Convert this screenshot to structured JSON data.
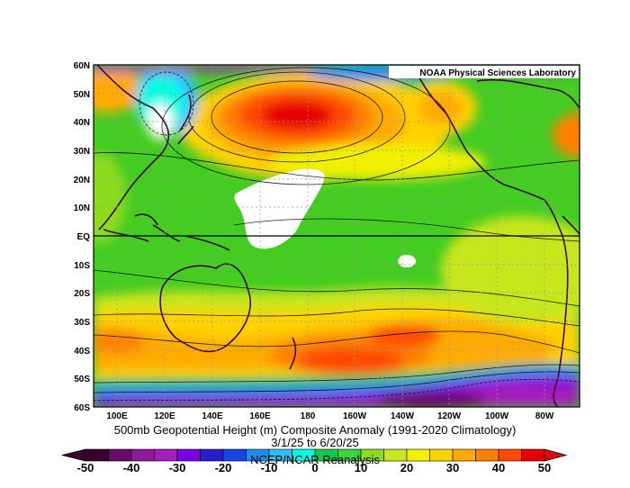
{
  "map": {
    "credit": "NOAA Physical Sciences Laboratory",
    "lat_labels": [
      "60N",
      "50N",
      "40N",
      "30N",
      "20N",
      "10N",
      "EQ",
      "10S",
      "20S",
      "30S",
      "40S",
      "50S",
      "60S"
    ],
    "lon_labels": [
      "100E",
      "120E",
      "140E",
      "160E",
      "180",
      "160W",
      "140W",
      "120W",
      "100W",
      "80W"
    ],
    "colors": {
      "land_outline": "#3a0a3a",
      "grid": "#999999",
      "zero_band": "#44cc22"
    }
  },
  "caption": {
    "line1": "500mb Geopotential Height (m) Composite Anomaly (1991-2020 Climatology)",
    "line2": "3/1/25  to 6/20/25",
    "line3": "NCEP/NCAR Reanalysis"
  },
  "colorbar": {
    "ticks": [
      "-50",
      "-40",
      "-30",
      "-20",
      "-10",
      "0",
      "10",
      "20",
      "30",
      "40",
      "50"
    ],
    "colors": [
      "#3c0030",
      "#6a0a6a",
      "#8c1a9a",
      "#a41ebc",
      "#7a00e6",
      "#2a1ac8",
      "#1446e6",
      "#1e8cf0",
      "#30c0ff",
      "#00ffe0",
      "#14c850",
      "#3cd43c",
      "#8cdc1e",
      "#c8e61e",
      "#f0f000",
      "#ffd200",
      "#ffaa00",
      "#ff8000",
      "#ff4a00",
      "#e60000"
    ]
  }
}
